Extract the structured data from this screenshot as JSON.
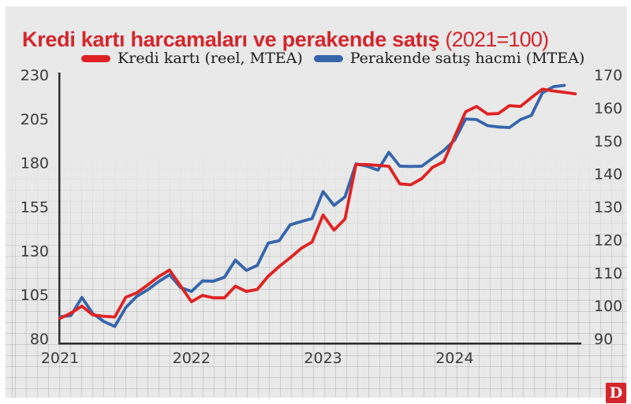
{
  "title": {
    "main": "Kredi kartı harcamaları ve perakende satış",
    "suffix": "(2021=100)",
    "color": "#d4262c"
  },
  "legend": [
    {
      "label": "Kredi kartı (reel, MTEA)",
      "color": "#e02322"
    },
    {
      "label": "Perakende satış hacmi (MTEA)",
      "color": "#3566ac"
    }
  ],
  "logo": {
    "letter": "D",
    "color": "#d4262c"
  },
  "chart_data": {
    "type": "line",
    "title": "Kredi kartı harcamaları ve perakende satış (2021=100)",
    "frequency": "monthly",
    "x_start": "2021-01",
    "x_tick_labels": [
      "2021",
      "2022",
      "2023",
      "2024"
    ],
    "grid": "graph-paper background, fades toward top",
    "legend_position": "top",
    "left_axis": {
      "ticks": [
        230,
        205,
        180,
        155,
        130,
        105,
        80
      ],
      "range": [
        80,
        230
      ]
    },
    "right_axis": {
      "ticks": [
        170,
        160,
        150,
        140,
        130,
        120,
        110,
        100,
        90
      ],
      "range": [
        90,
        170
      ]
    },
    "series": [
      {
        "name": "Kredi kartı (reel, MTEA)",
        "axis": "left",
        "color": "#e02322",
        "values": [
          91.5,
          94.5,
          98.5,
          93.5,
          92.7,
          92.3,
          103.5,
          106.0,
          110.5,
          115.3,
          119.0,
          110.0,
          101.0,
          104.6,
          103.2,
          103.2,
          109.8,
          106.8,
          108.0,
          115.5,
          121.0,
          126.0,
          131.3,
          135.0,
          150.3,
          141.7,
          148.0,
          179.0,
          179.0,
          178.5,
          178.0,
          168.0,
          167.5,
          171.0,
          177.5,
          180.5,
          194.8,
          209.0,
          212.0,
          207.7,
          208.0,
          212.5,
          212.0,
          217.0,
          221.8,
          220.8,
          220.0,
          219.2
        ]
      },
      {
        "name": "Perakende satış hacmi (MTEA)",
        "axis": "right",
        "color": "#3566ac",
        "values": [
          96.6,
          97.0,
          102.5,
          97.6,
          95.2,
          93.7,
          99.4,
          102.8,
          104.8,
          107.3,
          109.4,
          105.5,
          104.3,
          107.5,
          107.4,
          108.6,
          113.8,
          110.7,
          112.2,
          119.0,
          119.7,
          124.5,
          125.5,
          126.4,
          134.6,
          130.4,
          133.0,
          143.0,
          142.3,
          141.1,
          146.5,
          142.3,
          142.2,
          142.3,
          144.7,
          147.0,
          150.2,
          156.6,
          156.4,
          154.6,
          154.2,
          154.0,
          156.4,
          157.7,
          164.5,
          166.4,
          166.8
        ]
      }
    ]
  }
}
